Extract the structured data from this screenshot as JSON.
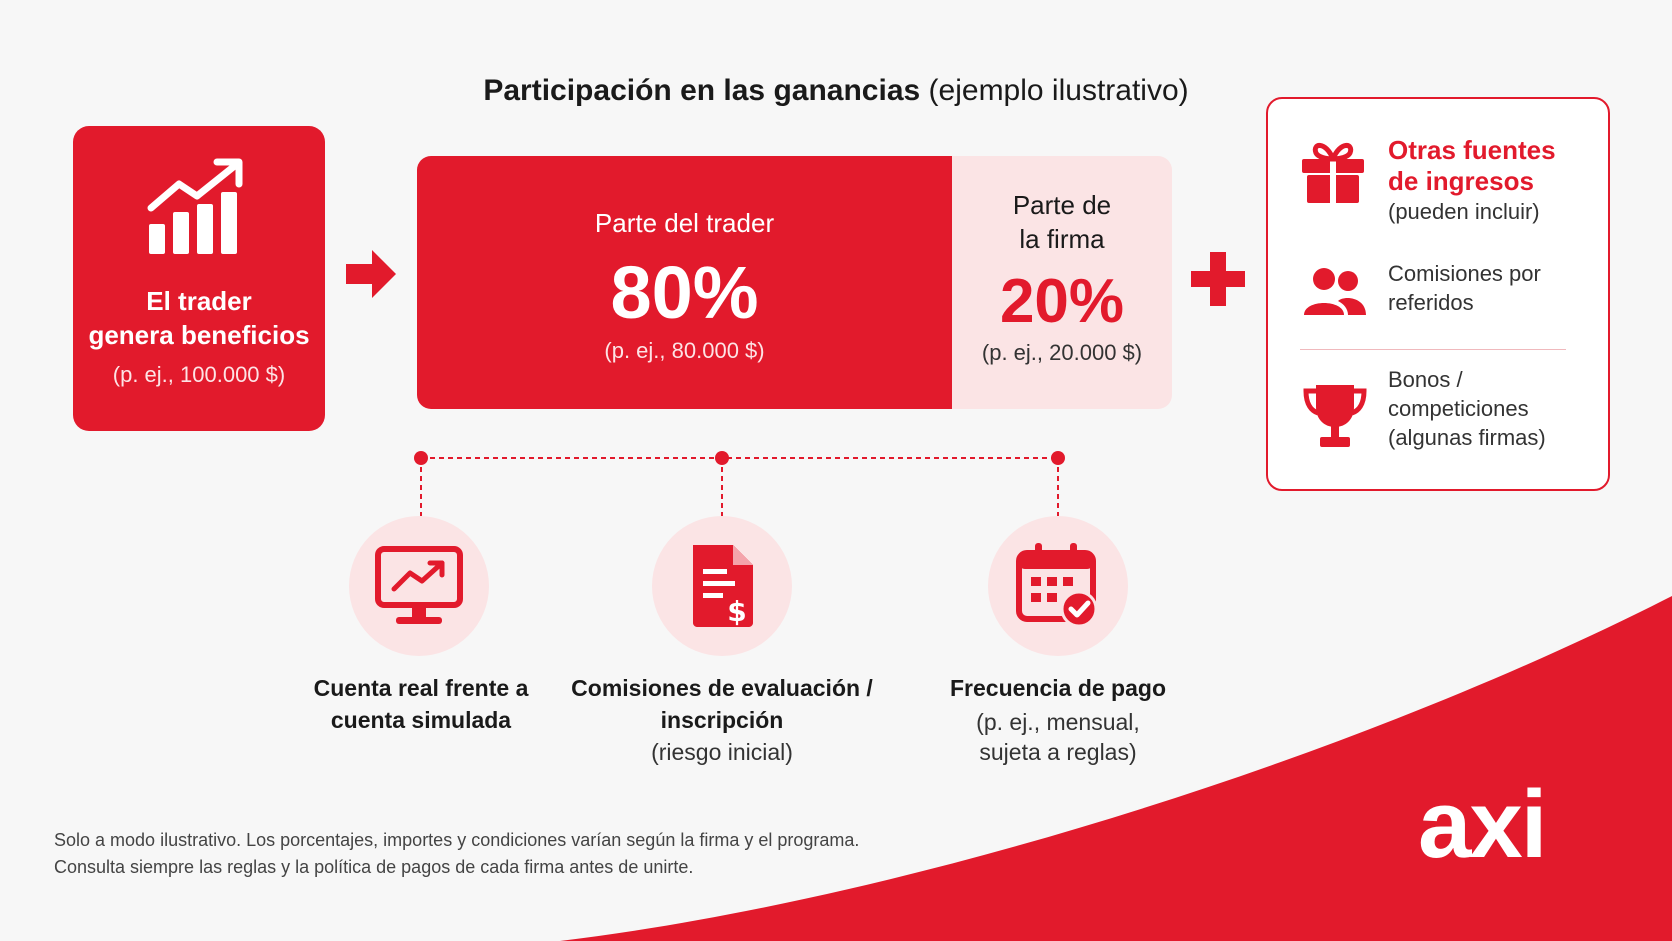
{
  "title": {
    "bold": "Participación en las ganancias",
    "rest": "(ejemplo ilustrativo)"
  },
  "generator": {
    "line1": "El trader",
    "line2": "genera beneficios",
    "example": "(p. ej., 100.000 $)"
  },
  "split": {
    "trader": {
      "label": "Parte del trader",
      "percent": "80%",
      "example": "(p. ej., 80.000 $)"
    },
    "firm": {
      "label_line1": "Parte de",
      "label_line2": "la firma",
      "percent": "20%",
      "example": "(p. ej., 20.000 $)"
    }
  },
  "other_income": {
    "title_line1": "Otras fuentes",
    "title_line2": "de ingresos",
    "subtitle": "(pueden incluir)",
    "items": [
      {
        "line1": "Comisiones por",
        "line2": "referidos",
        "icon": "users-icon"
      },
      {
        "line1": "Bonos /",
        "line2": "competiciones",
        "line3": "(algunas firmas)",
        "icon": "trophy-icon"
      }
    ]
  },
  "factors": [
    {
      "line1": "Cuenta real frente a",
      "line2": "cuenta simulada",
      "icon": "monitor-chart-icon"
    },
    {
      "line1": "Comisiones de evaluación /",
      "line2": "inscripción",
      "sub": "(riesgo inicial)",
      "icon": "invoice-icon"
    },
    {
      "line1": "Frecuencia de pago",
      "sub1": "(p. ej., mensual,",
      "sub2": "sujeta a reglas)",
      "icon": "calendar-check-icon"
    }
  ],
  "disclaimer": {
    "line1": "Solo a modo ilustrativo. Los porcentajes, importes y condiciones varían según la firma y el programa.",
    "line2": "Consulta siempre las reglas y la política de pagos de cada firma antes de unirte."
  },
  "brand": {
    "logo": "axi",
    "accent": "#e21a2c",
    "tint": "#fbe4e5"
  }
}
